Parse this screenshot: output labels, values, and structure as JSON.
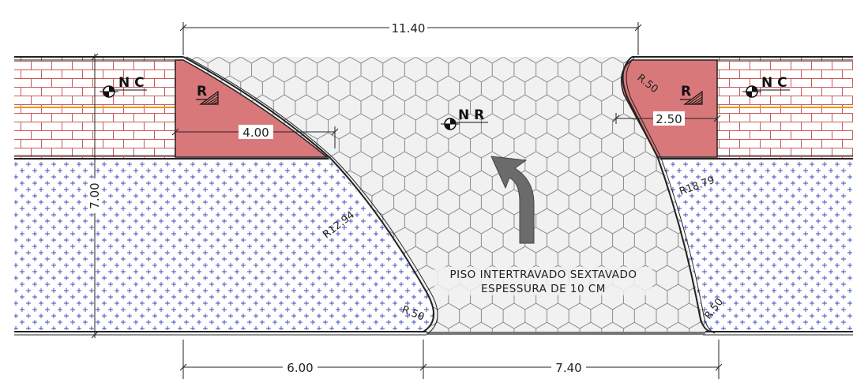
{
  "colors": {
    "sidewalk_hatch": "#c85a5a",
    "sidewalk_fill": "#ffffff",
    "ramp_fill": "#d9787a",
    "orange_line": "#f0951c",
    "road_cross": "#3a4cc0",
    "paving": "#f1f1f1",
    "arrow": "#6b6b6b"
  },
  "dimensions": {
    "top": "11.40",
    "left_ramp": "4.00",
    "right_ramp": "2.50",
    "height": "7.00",
    "bottom_left": "6.00",
    "bottom_right": "7.40"
  },
  "radii": {
    "left_big": "R12.94",
    "right_big": "R18.79",
    "left_small": "R.50",
    "right_small_bottom": "R.50",
    "right_small_top": "R.50"
  },
  "markers": {
    "nc_left": "N C",
    "nc_right": "N C",
    "nr": "N R",
    "ramp_left": "R",
    "ramp_right": "R"
  },
  "note": {
    "line1": "PISO  INTERTRAVADO  SEXTAVADO",
    "line2": "ESPESSURA  DE  10  CM"
  },
  "icons": {
    "arrow": "curved-arrow-icon",
    "level": "level-marker-icon",
    "slope": "slope-triangle-icon"
  }
}
